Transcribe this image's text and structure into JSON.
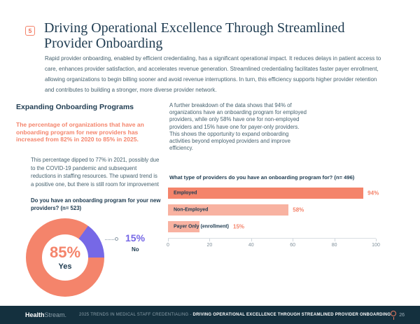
{
  "page": {
    "section_number": "5",
    "title": "Driving Operational Excellence Through Streamlined Provider Onboarding",
    "intro": "Rapid provider onboarding, enabled by efficient credentialing, has a significant operational impact. It reduces delays in patient access to care, enhances provider satisfaction, and accelerates revenue generation. Streamlined credentialing facilitates faster payer enrollment, allowing organizations to begin billing sooner and avoid revenue interruptions. In turn, this efficiency supports higher provider retention and contributes to building a stronger, more diverse provider network."
  },
  "left_column": {
    "heading": "Expanding Onboarding Programs",
    "highlight": "The percentage of organizations that have an onboarding program for new providers has increased from 82% in 2020 to 85% in 2025.",
    "body": "This percentage dipped to 77% in 2021, possibly due to the COVID-19 pandemic and subsequent reductions in staffing resources. The upward trend is a positive one, but there is still room for improvement",
    "question": "Do you have an onboarding program for your new providers? (n= 523)"
  },
  "right_column": {
    "body": "A further breakdown of the data shows that 94% of organizations have an onboarding program for employed providers, while only 58% have one for non-employed providers and 15% have one for payer-only providers. This shows the opportunity to expand onboarding activities beyond employed providers and improve efficiency.",
    "question": "What type of providers do you have an onboarding program for? (n= 496)"
  },
  "chart_data": [
    {
      "type": "pie",
      "donut": true,
      "title": "Do you have an onboarding program for your new providers? (n= 523)",
      "labels": [
        "Yes",
        "No"
      ],
      "values": [
        85,
        15
      ],
      "colors": [
        "#f4846b",
        "#7668e6"
      ],
      "center_value": "85%",
      "center_label": "Yes",
      "callout_value": "15%",
      "callout_label": "No"
    },
    {
      "type": "bar",
      "orientation": "horizontal",
      "title": "What type of providers do you have an onboarding program for? (n= 496)",
      "categories": [
        "Employed",
        "Non-Employed",
        "Payer Only (enrollment)"
      ],
      "values": [
        94,
        58,
        15
      ],
      "value_labels": [
        "94%",
        "58%",
        "15%"
      ],
      "bar_colors": [
        "#f4846b",
        "#f8b2a1",
        "#f8b2a1"
      ],
      "xlim": [
        0,
        100
      ],
      "x_ticks": [
        0,
        20,
        40,
        60,
        80,
        100
      ],
      "grid": false,
      "legend": "none"
    }
  ],
  "footer": {
    "logo_bold": "Health",
    "logo_light": "Stream.",
    "doc_title": "2025 TRENDS IN MEDICAL STAFF CREDENTIALING",
    "separator": " - ",
    "section_title": "DRIVING OPERATIONAL EXCELLENCE THROUGH STREAMLINED PROVIDER ONBOARDING",
    "page_number": "26"
  },
  "palette": {
    "accent_salmon": "#f4846b",
    "accent_salmon_light": "#f8b2a1",
    "accent_purple": "#7668e6",
    "navy_text": "#203d52",
    "body_text": "#47626f",
    "footer_bg": "#14303e"
  }
}
